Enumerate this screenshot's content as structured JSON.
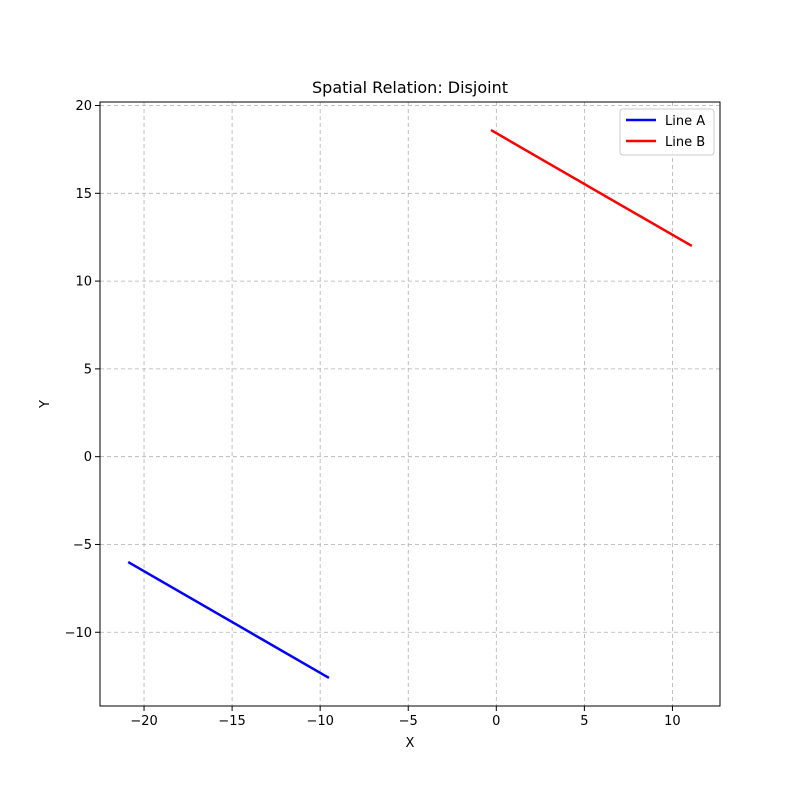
{
  "chart_data": {
    "type": "line",
    "title": "Spatial Relation: Disjoint",
    "xlabel": "X",
    "ylabel": "Y",
    "xlim": [
      -22.5,
      12.7
    ],
    "ylim": [
      -14.2,
      20.2
    ],
    "xticks": [
      -20,
      -15,
      -10,
      -5,
      0,
      5,
      10
    ],
    "yticks": [
      -10,
      -5,
      0,
      5,
      10,
      15,
      20
    ],
    "xtick_labels": [
      "−20",
      "−15",
      "−10",
      "−5",
      "0",
      "5",
      "10"
    ],
    "ytick_labels": [
      "−10",
      "−5",
      "0",
      "5",
      "10",
      "15",
      "20"
    ],
    "grid": true,
    "legend_position": "top-right",
    "series": [
      {
        "name": "Line A",
        "color": "#0000ff",
        "x": [
          -20.9,
          -9.5
        ],
        "y": [
          -6.0,
          -12.6
        ]
      },
      {
        "name": "Line B",
        "color": "#ff0000",
        "x": [
          -0.3,
          11.1
        ],
        "y": [
          18.6,
          12.0
        ]
      }
    ]
  }
}
